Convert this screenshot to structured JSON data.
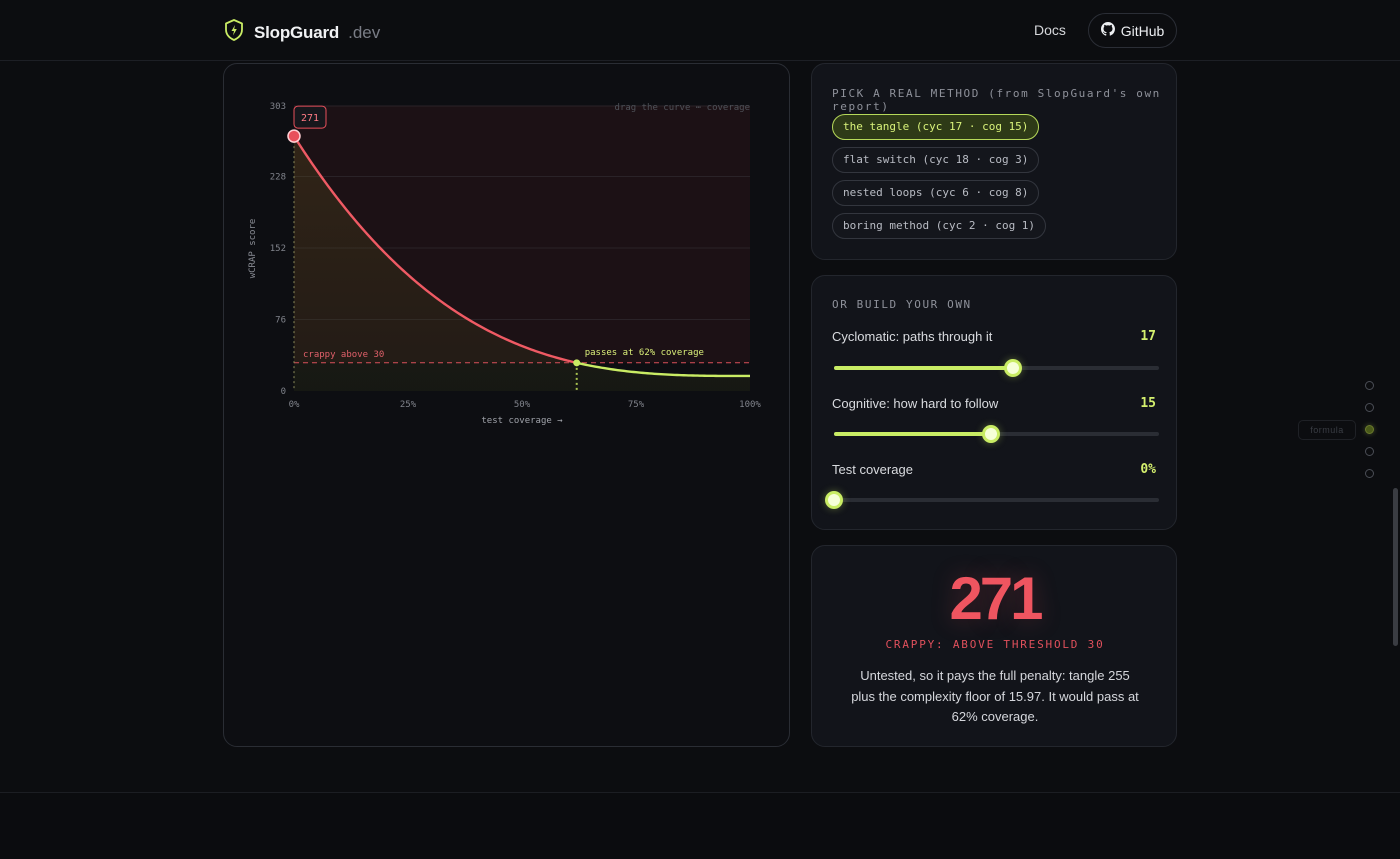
{
  "header": {
    "brand_name": "SlopGuard",
    "brand_tld": ".dev",
    "nav_docs": "Docs",
    "nav_github": "GitHub"
  },
  "colors": {
    "accent": "#c9ec64",
    "danger": "#ef5560",
    "background": "#0c0d10",
    "panel": "#12141a"
  },
  "methods": {
    "heading": "PICK A REAL METHOD (from SlopGuard's own report)",
    "items": [
      {
        "label": "the tangle (cyc 17 · cog 15)",
        "active": true
      },
      {
        "label": "flat switch (cyc 18 · cog 3)",
        "active": false
      },
      {
        "label": "nested loops (cyc 6 · cog 8)",
        "active": false
      },
      {
        "label": "boring method (cyc 2 · cog 1)",
        "active": false
      }
    ]
  },
  "build": {
    "heading": "OR BUILD YOUR OWN",
    "sliders": [
      {
        "label": "Cyclomatic: paths through it",
        "display": "17",
        "fraction": 0.551
      },
      {
        "label": "Cognitive: how hard to follow",
        "display": "15",
        "fraction": 0.484
      },
      {
        "label": "Test coverage",
        "display": "0%",
        "fraction": 0.0
      }
    ]
  },
  "score": {
    "value": "271",
    "verdict": "CRAPPY: ABOVE THRESHOLD 30",
    "description": "Untested, so it pays the full penalty: tangle 255 plus the complexity floor of 15.97. It would pass at 62% coverage."
  },
  "rail": {
    "label": "formula",
    "dots": 5,
    "active_index": 2
  },
  "chart_data": {
    "type": "line",
    "title": "",
    "xlabel": "test coverage →",
    "ylabel": "wCRAP score",
    "hint": "drag the curve ⋯ coverage",
    "xlim": [
      0,
      100
    ],
    "ylim": [
      0,
      303
    ],
    "x_ticks": [
      "0%",
      "25%",
      "50%",
      "75%",
      "100%"
    ],
    "x_tick_values": [
      0,
      25,
      50,
      75,
      100
    ],
    "y_ticks": [
      "0",
      "76",
      "152",
      "228",
      "303"
    ],
    "y_tick_values": [
      0,
      76,
      152,
      228,
      303
    ],
    "series": [
      {
        "formula": "complexity_penalty * (1 - coverage)^3 + floor",
        "complexity_penalty": 255,
        "floor": 15.97
      }
    ],
    "threshold": {
      "value": 30,
      "label": "crappy above 30"
    },
    "pass_marker": {
      "x": 62,
      "label": "passes at 62% coverage"
    },
    "current_point": {
      "x": 0,
      "y": 271,
      "label": "271"
    }
  }
}
